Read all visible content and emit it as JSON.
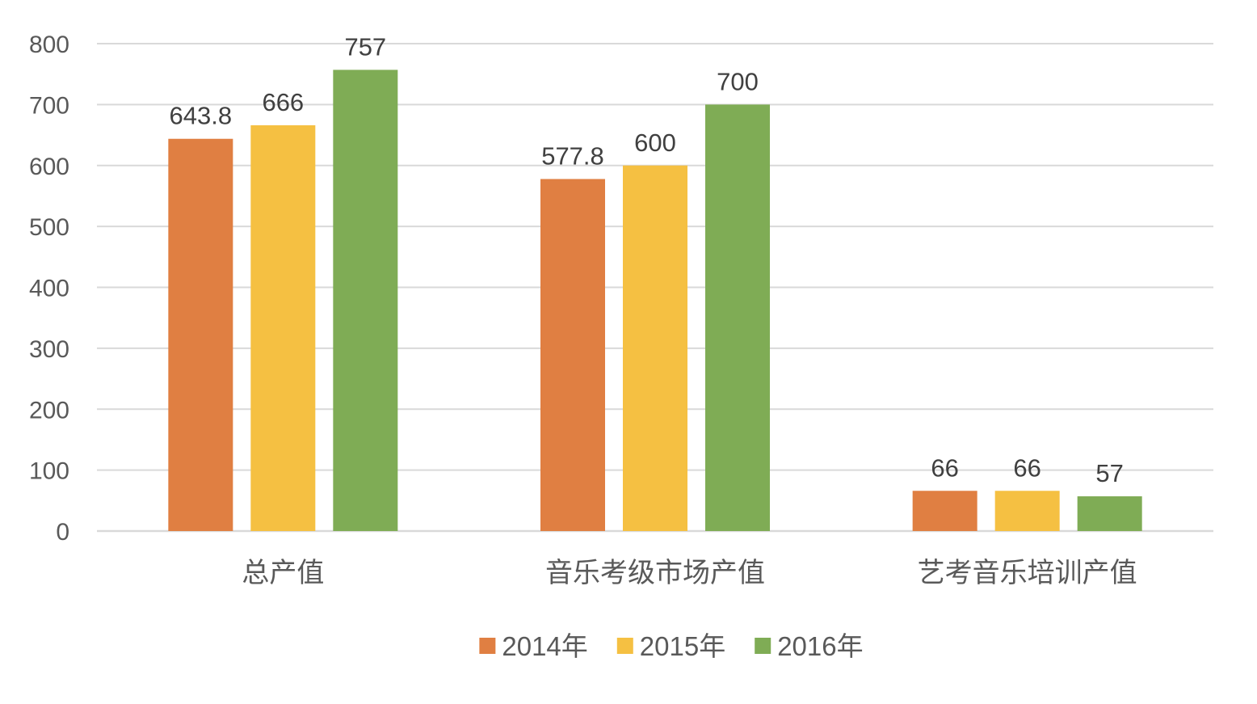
{
  "chart_data": {
    "type": "bar",
    "title": "",
    "xlabel": "",
    "ylabel": "",
    "categories": [
      "总产值",
      "音乐考级市场产值",
      "艺考音乐培训产值"
    ],
    "series": [
      {
        "name": "2014年",
        "values": [
          643.8,
          577.8,
          66
        ],
        "labels": [
          "643.8",
          "577.8",
          "66"
        ]
      },
      {
        "name": "2015年",
        "values": [
          666,
          600,
          66
        ],
        "labels": [
          "666",
          "600",
          "66"
        ]
      },
      {
        "name": "2016年",
        "values": [
          757,
          700,
          57
        ],
        "labels": [
          "757",
          "700",
          "57"
        ]
      }
    ],
    "ylim": [
      0,
      800
    ],
    "yticks": [
      0,
      100,
      200,
      300,
      400,
      500,
      600,
      700,
      800
    ],
    "grid": true,
    "legend_position": "bottom"
  },
  "colors": {
    "series": [
      "#e07f42",
      "#f5c042",
      "#7fac55"
    ],
    "grid": "#d9d9d9",
    "text": "#595959"
  }
}
